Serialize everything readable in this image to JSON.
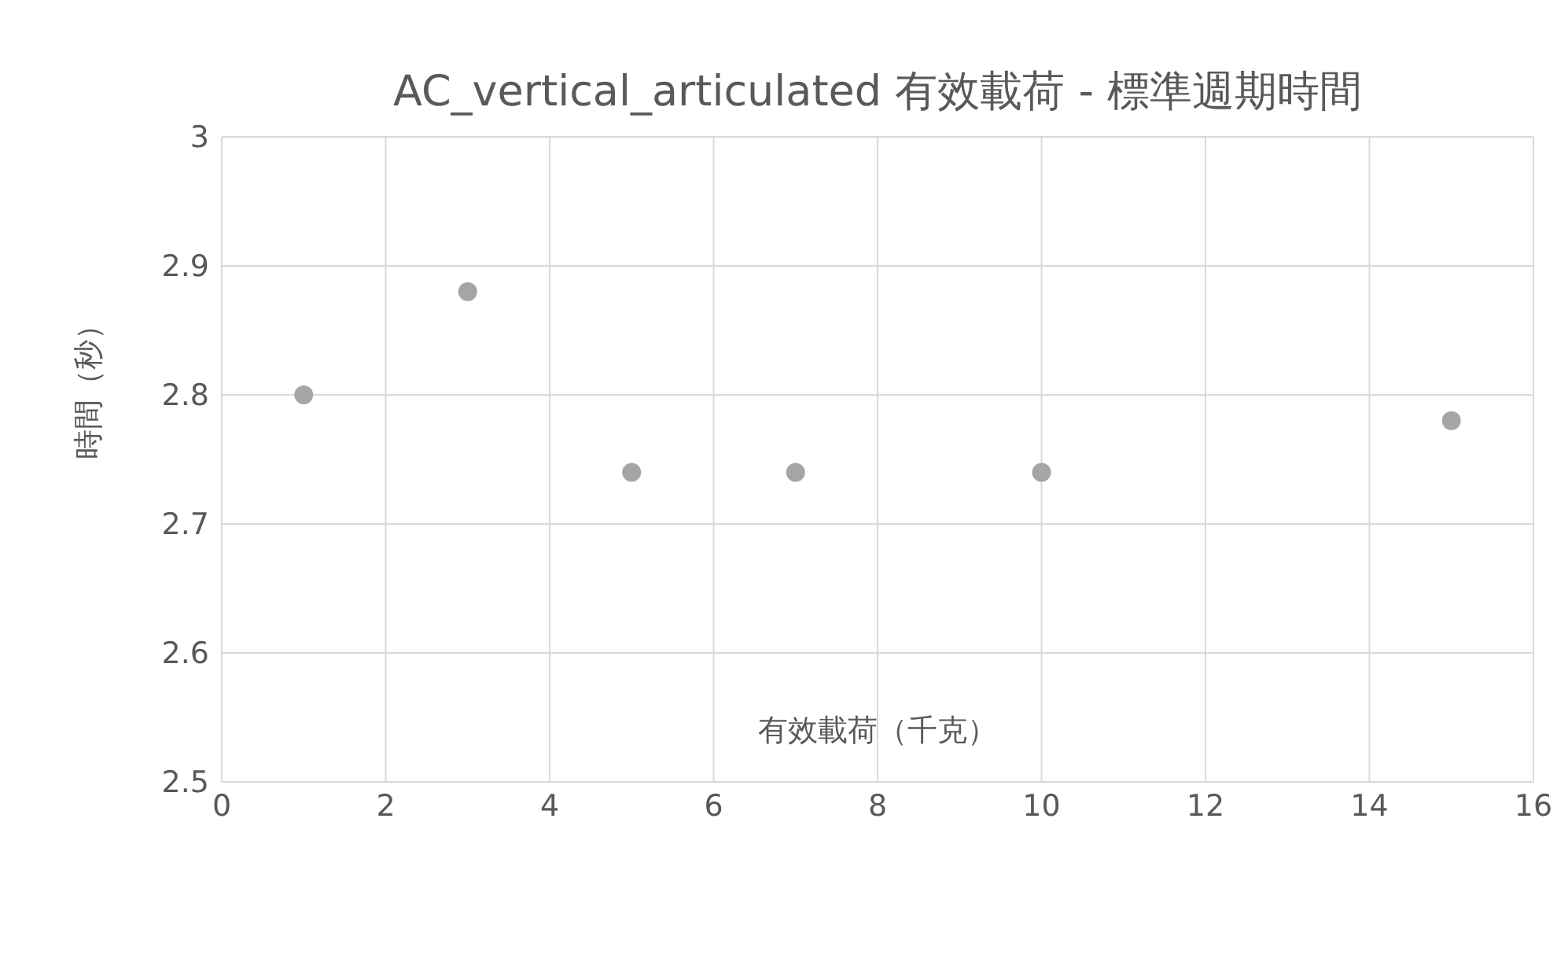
{
  "chart_data": {
    "type": "scatter",
    "title": "AC_vertical_articulated 有效載荷 - 標準週期時間",
    "xlabel": "有效載荷（千克）",
    "ylabel": "時間（秒）",
    "x": [
      1,
      3,
      5,
      7,
      10,
      15
    ],
    "series": [
      {
        "color": "#a5a5a5",
        "values": [
          2.8,
          2.88,
          2.74,
          2.74,
          2.74,
          2.78
        ]
      }
    ],
    "xlim": [
      0,
      16
    ],
    "xticks": [
      0,
      2,
      4,
      6,
      8,
      10,
      12,
      14,
      16
    ],
    "ylim": [
      2.5,
      3
    ],
    "yticks": [
      2.5,
      2.6,
      2.7,
      2.8,
      2.9,
      3
    ],
    "grid": true,
    "marker": "circle"
  }
}
